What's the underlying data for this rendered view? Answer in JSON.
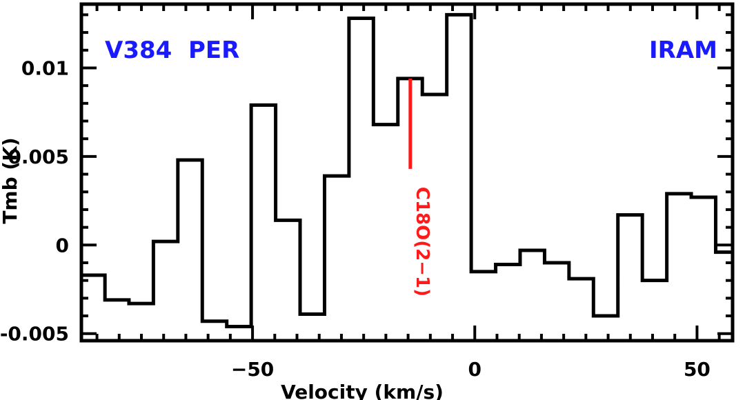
{
  "chart_data": {
    "type": "step",
    "title": "",
    "xlabel": "Velocity (km/s)",
    "ylabel": "Tmb (K)",
    "xlim": [
      -88.5,
      58
    ],
    "ylim": [
      -0.0054,
      0.0136
    ],
    "x_ticks": [
      -50,
      0,
      50
    ],
    "x_tick_labels": [
      "−50",
      "0",
      "50"
    ],
    "y_ticks": [
      -0.005,
      0,
      0.005,
      0.01
    ],
    "y_tick_labels": [
      "-0.005",
      "0",
      "0.005",
      "0.01"
    ],
    "bin_edges": [
      -88.5,
      -83.2,
      -77.8,
      -72.3,
      -66.8,
      -61.3,
      -55.8,
      -50.3,
      -44.8,
      -39.3,
      -33.8,
      -28.3,
      -22.8,
      -17.3,
      -11.8,
      -6.3,
      -0.8,
      4.7,
      10.2,
      15.7,
      21.2,
      26.7,
      32.2,
      37.7,
      43.2,
      48.7,
      54.2,
      58
    ],
    "values": [
      -0.0017,
      -0.0031,
      -0.0033,
      0.0002,
      0.0048,
      -0.0043,
      -0.0046,
      0.0079,
      0.0014,
      -0.0039,
      0.0039,
      0.0128,
      0.0068,
      0.0094,
      0.0085,
      0.013,
      -0.0015,
      -0.0011,
      -0.0003,
      -0.001,
      -0.0019,
      -0.004,
      0.0017,
      -0.002,
      0.0029,
      0.0027,
      -0.0004
    ],
    "annotations": {
      "source": "V384  PER",
      "telescope": "IRAM",
      "line_label": "C18O(2−1)",
      "line_velocity": -14.5,
      "line_ymin": 0.0043,
      "line_ymax": 0.0094
    },
    "colors": {
      "spectrum": "#000000",
      "labels": "#1a1aff",
      "marker": "#ff1a1a"
    }
  }
}
